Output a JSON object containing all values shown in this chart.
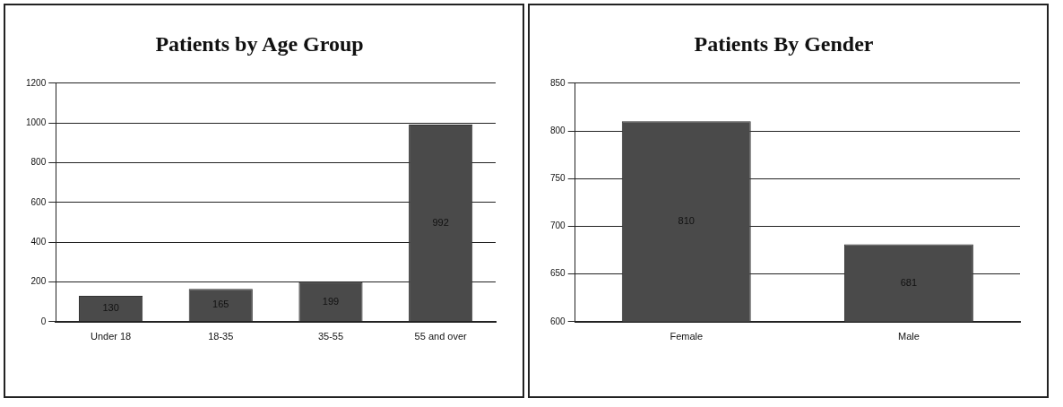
{
  "chart_data": [
    {
      "type": "bar",
      "title": "Patients by Age Group",
      "categories": [
        "Under 18",
        "18-35",
        "35-55",
        "55 and over"
      ],
      "values": [
        130,
        165,
        199,
        992
      ],
      "color": "#4a4a4a",
      "ylim": [
        0,
        1200
      ],
      "yticks": [
        0,
        200,
        400,
        600,
        800,
        1000,
        1200
      ],
      "grid": "y",
      "data_labels": true
    },
    {
      "type": "bar",
      "title": "Patients By Gender",
      "categories": [
        "Female",
        "Male"
      ],
      "values": [
        810,
        681
      ],
      "color": "#4a4a4a",
      "ylim": [
        600,
        850
      ],
      "yticks": [
        600,
        650,
        700,
        750,
        800,
        850
      ],
      "grid": "y",
      "data_labels": true
    }
  ]
}
